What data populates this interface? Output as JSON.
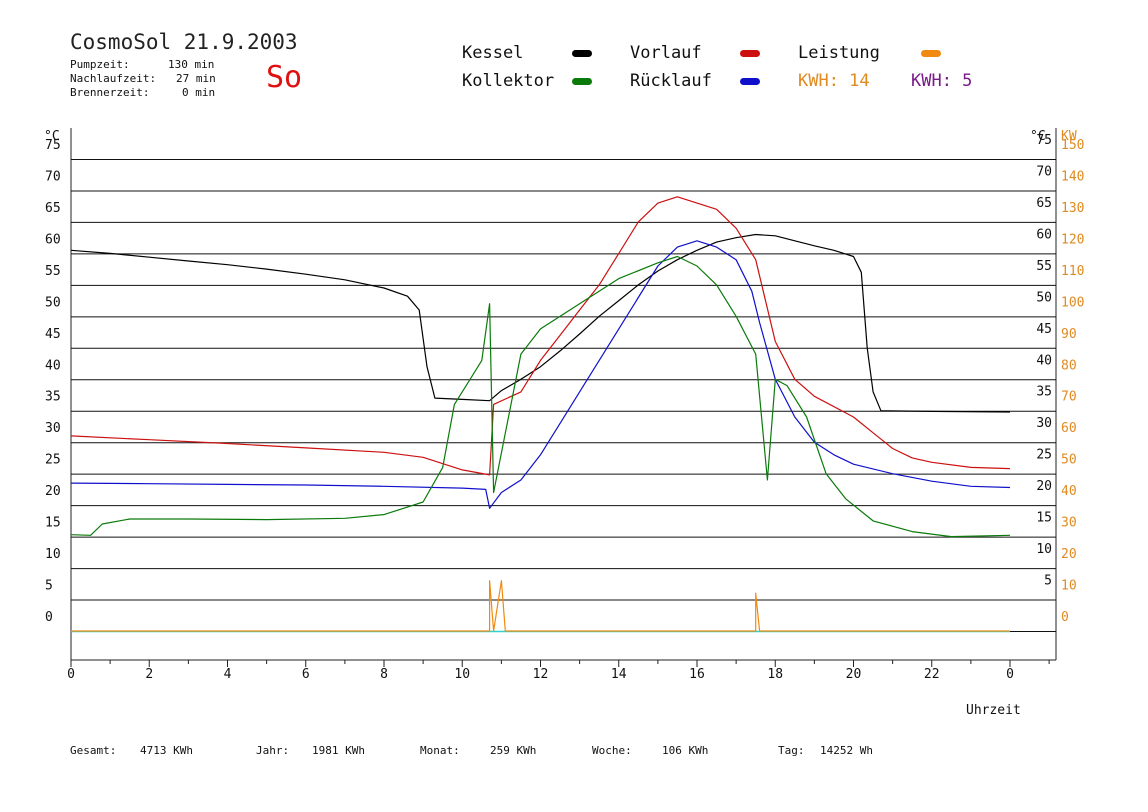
{
  "header": {
    "title": "CosmoSol 21.9.2003",
    "day": "So",
    "stats": [
      {
        "label": "Pumpzeit:",
        "value": "130 min"
      },
      {
        "label": "Nachlaufzeit:",
        "value": "27 min"
      },
      {
        "label": "Brennerzeit:",
        "value": "0 min"
      }
    ]
  },
  "legend": {
    "kessel": "Kessel",
    "kollektor": "Kollektor",
    "vorlauf": "Vorlauf",
    "ruecklauf": "Rücklauf",
    "leistung": "Leistung",
    "kwh1": "KWH: 14",
    "kwh2": "KWH: 5"
  },
  "colors": {
    "kessel": "#000000",
    "kollektor": "#0a7a0a",
    "vorlauf": "#cc1010",
    "ruecklauf": "#1010cc",
    "leistung": "#f08a10",
    "kwh2": "#7a1a8a",
    "baseline": "#30d0d0"
  },
  "footer": {
    "gesamt_label": "Gesamt:",
    "gesamt_value": "4713 KWh",
    "jahr_label": "Jahr:",
    "jahr_value": "1981 KWh",
    "monat_label": "Monat:",
    "monat_value": "259 KWh",
    "woche_label": "Woche:",
    "woche_value": "106 KWh",
    "tag_label": "Tag:",
    "tag_value": "14252 Wh"
  },
  "chart_data": {
    "type": "line",
    "xlabel": "Uhrzeit",
    "ylabel_left": "°C",
    "ylabel_right_c": "°C",
    "ylabel_right_kw": "KW",
    "xlim": [
      0,
      24
    ],
    "ylim": [
      0,
      75
    ],
    "x_ticks": [
      "0",
      "2",
      "4",
      "6",
      "8",
      "10",
      "12",
      "14",
      "16",
      "18",
      "20",
      "22",
      "0"
    ],
    "y_ticks": [
      "0",
      "5",
      "10",
      "15",
      "20",
      "25",
      "30",
      "35",
      "40",
      "45",
      "50",
      "55",
      "60",
      "65",
      "70",
      "75"
    ],
    "y_ticks_right_c": [
      "5",
      "10",
      "15",
      "20",
      "25",
      "30",
      "35",
      "40",
      "45",
      "50",
      "55",
      "60",
      "65",
      "70",
      "75"
    ],
    "y_ticks_right_kw": [
      "0",
      "10",
      "20",
      "30",
      "40",
      "50",
      "60",
      "70",
      "80",
      "90",
      "100",
      "110",
      "120",
      "130",
      "140",
      "150"
    ],
    "series": [
      {
        "name": "Kessel",
        "points": [
          [
            0,
            60.5
          ],
          [
            1,
            60
          ],
          [
            2,
            59.4
          ],
          [
            3,
            58.8
          ],
          [
            4,
            58.2
          ],
          [
            5,
            57.5
          ],
          [
            6,
            56.7
          ],
          [
            7,
            55.8
          ],
          [
            8,
            54.5
          ],
          [
            8.6,
            53.2
          ],
          [
            8.9,
            51
          ],
          [
            9.1,
            42
          ],
          [
            9.3,
            37
          ],
          [
            10,
            36.8
          ],
          [
            10.7,
            36.6
          ],
          [
            11,
            38.2
          ],
          [
            11.5,
            40
          ],
          [
            12,
            42
          ],
          [
            12.5,
            44.5
          ],
          [
            13,
            47.2
          ],
          [
            13.5,
            50
          ],
          [
            14,
            52.5
          ],
          [
            14.5,
            55
          ],
          [
            15,
            57.2
          ],
          [
            15.5,
            59
          ],
          [
            16,
            60.5
          ],
          [
            16.5,
            61.8
          ],
          [
            17,
            62.5
          ],
          [
            17.5,
            63
          ],
          [
            18,
            62.8
          ],
          [
            18.5,
            62
          ],
          [
            19,
            61.2
          ],
          [
            19.5,
            60.5
          ],
          [
            20,
            59.5
          ],
          [
            20.2,
            57
          ],
          [
            20.35,
            45
          ],
          [
            20.5,
            38
          ],
          [
            20.7,
            35
          ],
          [
            22,
            34.9
          ],
          [
            24,
            34.8
          ]
        ]
      },
      {
        "name": "Vorlauf",
        "points": [
          [
            0,
            31
          ],
          [
            2,
            30.4
          ],
          [
            4,
            29.8
          ],
          [
            6,
            29.1
          ],
          [
            8,
            28.4
          ],
          [
            9,
            27.6
          ],
          [
            10,
            25.6
          ],
          [
            10.7,
            24.8
          ],
          [
            10.8,
            36
          ],
          [
            11.5,
            38
          ],
          [
            12,
            43
          ],
          [
            12.5,
            47
          ],
          [
            13,
            51
          ],
          [
            13.5,
            55
          ],
          [
            14,
            60
          ],
          [
            14.5,
            65
          ],
          [
            15,
            68
          ],
          [
            15.5,
            69
          ],
          [
            16,
            68
          ],
          [
            16.5,
            67
          ],
          [
            17,
            64
          ],
          [
            17.5,
            59
          ],
          [
            18,
            46
          ],
          [
            18.5,
            40
          ],
          [
            19,
            37.3
          ],
          [
            20,
            34
          ],
          [
            20.5,
            31.5
          ],
          [
            21,
            29
          ],
          [
            21.5,
            27.5
          ],
          [
            22,
            26.8
          ],
          [
            23,
            26
          ],
          [
            24,
            25.8
          ]
        ]
      },
      {
        "name": "Rücklauf",
        "points": [
          [
            0,
            23.5
          ],
          [
            2,
            23.4
          ],
          [
            4,
            23.3
          ],
          [
            6,
            23.2
          ],
          [
            8,
            23
          ],
          [
            10,
            22.7
          ],
          [
            10.6,
            22.5
          ],
          [
            10.7,
            19.5
          ],
          [
            11,
            22
          ],
          [
            11.5,
            24
          ],
          [
            12,
            28
          ],
          [
            12.5,
            33
          ],
          [
            13,
            38
          ],
          [
            13.5,
            43
          ],
          [
            14,
            48
          ],
          [
            14.5,
            53
          ],
          [
            15,
            58
          ],
          [
            15.5,
            61
          ],
          [
            16,
            62
          ],
          [
            16.5,
            61
          ],
          [
            17,
            59
          ],
          [
            17.4,
            54
          ],
          [
            17.6,
            49
          ],
          [
            18,
            40
          ],
          [
            18.5,
            34
          ],
          [
            19,
            30
          ],
          [
            19.5,
            28
          ],
          [
            20,
            26.5
          ],
          [
            21,
            25
          ],
          [
            22,
            23.8
          ],
          [
            23,
            23
          ],
          [
            24,
            22.8
          ]
        ]
      },
      {
        "name": "Kollektor",
        "points": [
          [
            0,
            15.3
          ],
          [
            0.5,
            15.2
          ],
          [
            0.8,
            17
          ],
          [
            1.5,
            17.8
          ],
          [
            3,
            17.8
          ],
          [
            5,
            17.7
          ],
          [
            7,
            17.9
          ],
          [
            8,
            18.5
          ],
          [
            9,
            20.5
          ],
          [
            9.5,
            26
          ],
          [
            9.8,
            36
          ],
          [
            10.2,
            40
          ],
          [
            10.5,
            43
          ],
          [
            10.7,
            52
          ],
          [
            10.8,
            22
          ],
          [
            11.5,
            44
          ],
          [
            12,
            48
          ],
          [
            13,
            52
          ],
          [
            14,
            56
          ],
          [
            15,
            58.5
          ],
          [
            15.5,
            59.5
          ],
          [
            16,
            58
          ],
          [
            16.5,
            55
          ],
          [
            17,
            50
          ],
          [
            17.5,
            44
          ],
          [
            17.8,
            24
          ],
          [
            18,
            40
          ],
          [
            18.3,
            39
          ],
          [
            18.8,
            34
          ],
          [
            19.3,
            25
          ],
          [
            19.8,
            21
          ],
          [
            20.5,
            17.5
          ],
          [
            21.5,
            15.8
          ],
          [
            22.5,
            15
          ],
          [
            24,
            15.2
          ]
        ]
      },
      {
        "name": "Leistung",
        "points": [
          [
            0,
            0
          ],
          [
            10.7,
            0
          ],
          [
            10.7,
            8
          ],
          [
            10.8,
            0
          ],
          [
            11,
            8
          ],
          [
            11.1,
            0
          ],
          [
            17.5,
            0
          ],
          [
            17.5,
            6
          ],
          [
            17.6,
            0
          ],
          [
            24,
            0
          ]
        ]
      }
    ]
  }
}
